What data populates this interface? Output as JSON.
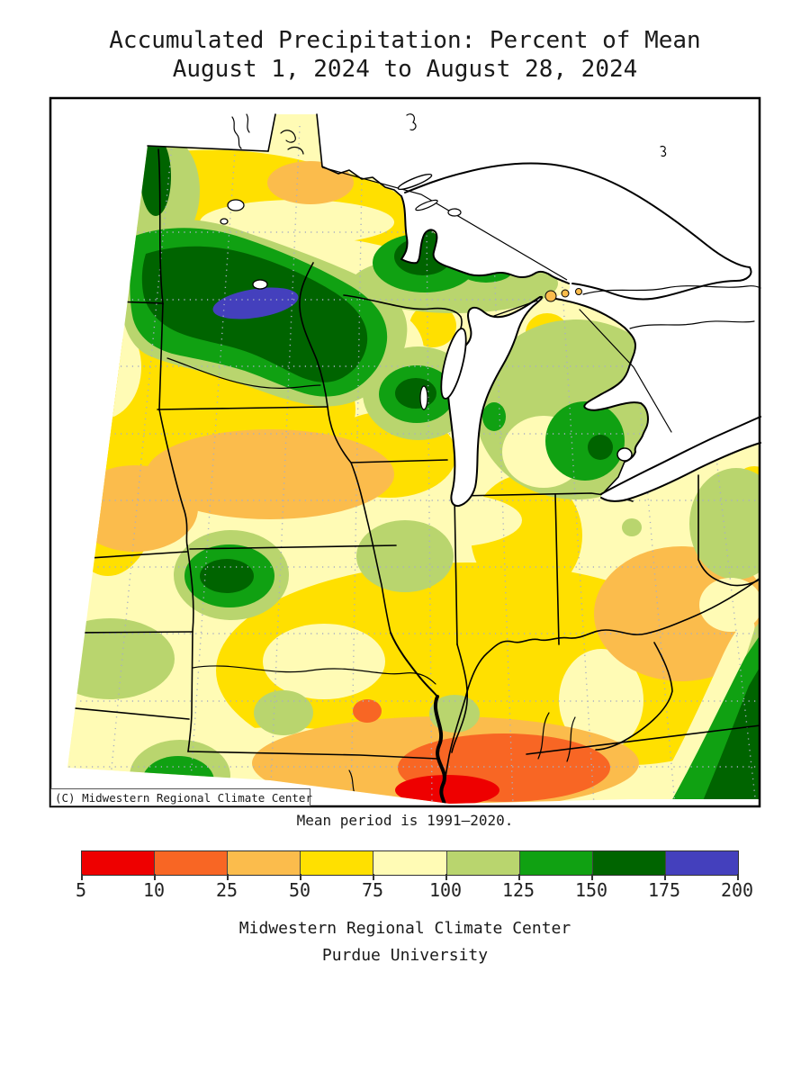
{
  "title": {
    "line1": "Accumulated Precipitation: Percent of Mean",
    "line2": "August 1, 2024 to August 28, 2024"
  },
  "map": {
    "copyright_label": "(C) Midwestern Regional Climate Center",
    "note": "Mean period is 1991–2020.",
    "region": "Midwestern United States and Great Lakes"
  },
  "legend": {
    "values": [
      "5",
      "10",
      "25",
      "50",
      "75",
      "100",
      "125",
      "150",
      "175",
      "200"
    ],
    "colors": [
      "#ee0000",
      "#f86624",
      "#fbbc4c",
      "#ffe000",
      "#fffbb5",
      "#b9d56e",
      "#10a112",
      "#006400",
      "#4440bd"
    ]
  },
  "footer": {
    "line1": "Midwestern Regional Climate Center",
    "line2": "Purdue University"
  },
  "palette": {
    "red": "#ee0000",
    "orange_red": "#f86624",
    "orange": "#fbbc4c",
    "yellow": "#ffe000",
    "pale_yellow": "#fffbb5",
    "light_green": "#b9d56e",
    "green": "#10a112",
    "dark_green": "#006400",
    "blue": "#4440bd",
    "grid": "#a8aec4",
    "outline": "#000000",
    "frame": "#000000"
  }
}
